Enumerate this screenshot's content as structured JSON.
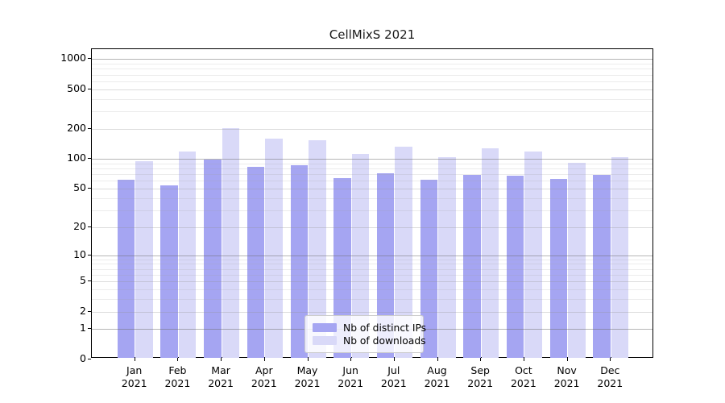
{
  "chart_data": {
    "type": "bar",
    "title": "CellMixS 2021",
    "categories": [
      "Jan 2021",
      "Feb 2021",
      "Mar 2021",
      "Apr 2021",
      "May 2021",
      "Jun 2021",
      "Jul 2021",
      "Aug 2021",
      "Sep 2021",
      "Oct 2021",
      "Nov 2021",
      "Dec 2021"
    ],
    "series": [
      {
        "name": "Nb of distinct IPs",
        "color": "#a5a5f2",
        "values": [
          60,
          53,
          96,
          82,
          84,
          63,
          70,
          60,
          67,
          66,
          61,
          68
        ]
      },
      {
        "name": "Nb of downloads",
        "color": "#d9d9f8",
        "values": [
          93,
          117,
          200,
          157,
          150,
          110,
          131,
          102,
          125,
          117,
          90,
          102
        ]
      }
    ],
    "xlabel": "",
    "ylabel": "",
    "y_ticks": [
      0,
      1,
      2,
      5,
      10,
      20,
      50,
      100,
      200,
      500,
      1000
    ],
    "y_scale": "log1p",
    "ylim": [
      0,
      1260
    ],
    "grid": true,
    "legend_position": "inside-bottom-center"
  }
}
